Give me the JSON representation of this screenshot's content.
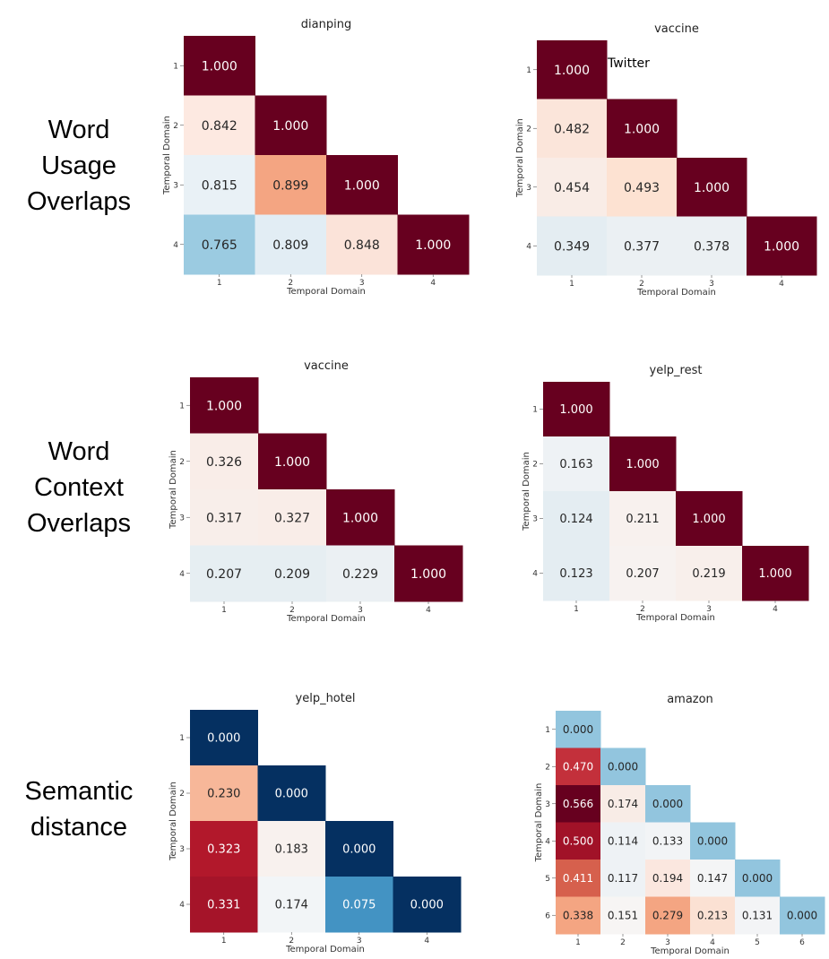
{
  "row_labels": [
    [
      "Word",
      "Usage",
      "Overlaps"
    ],
    [
      "Word",
      "Context",
      "Overlaps"
    ],
    [
      "Semantic",
      "distance"
    ]
  ],
  "annotation": "Twitter",
  "colors": {
    "dark_red": "#67001f",
    "dark_blue": "#053061",
    "diverging_scale": [
      "#053061",
      "#2166ac",
      "#4393c3",
      "#92c5de",
      "#d1e5f0",
      "#f7f7f7",
      "#fddbc7",
      "#f4a582",
      "#d6604d",
      "#b2182b",
      "#67001f"
    ]
  },
  "chart_data": [
    {
      "type": "heatmap",
      "title": "dianping",
      "xlabel": "Temporal Domain",
      "ylabel": "Temporal Domain",
      "ticks": [
        "1",
        "2",
        "3",
        "4"
      ],
      "matrix": [
        [
          1.0
        ],
        [
          0.842,
          1.0
        ],
        [
          0.815,
          0.899,
          1.0
        ],
        [
          0.765,
          0.809,
          0.848,
          1.0
        ]
      ],
      "labels": [
        [
          "1.000"
        ],
        [
          "0.842",
          "1.000"
        ],
        [
          "0.815",
          "0.899",
          "1.000"
        ],
        [
          "0.765",
          "0.809",
          "0.848",
          "1.000"
        ]
      ],
      "colors": [
        [
          "#67001f"
        ],
        [
          "#fde9e1",
          "#67001f"
        ],
        [
          "#e9f1f6",
          "#f4a582",
          "#67001f"
        ],
        [
          "#9bcbe1",
          "#e2edf4",
          "#fbe3d9",
          "#67001f"
        ]
      ]
    },
    {
      "type": "heatmap",
      "title": "vaccine",
      "xlabel": "Temporal Domain",
      "ylabel": "Temporal Domain",
      "ticks": [
        "1",
        "2",
        "3",
        "4"
      ],
      "matrix": [
        [
          1.0
        ],
        [
          0.482,
          1.0
        ],
        [
          0.454,
          0.493,
          1.0
        ],
        [
          0.349,
          0.377,
          0.378,
          1.0
        ]
      ],
      "labels": [
        [
          "1.000"
        ],
        [
          "0.482",
          "1.000"
        ],
        [
          "0.454",
          "0.493",
          "1.000"
        ],
        [
          "0.349",
          "0.377",
          "0.378",
          "1.000"
        ]
      ],
      "colors": [
        [
          "#67001f"
        ],
        [
          "#fbe5da",
          "#67001f"
        ],
        [
          "#f9ece6",
          "#fde2d2",
          "#67001f"
        ],
        [
          "#e4edf2",
          "#ebf0f3",
          "#ebf0f3",
          "#67001f"
        ]
      ]
    },
    {
      "type": "heatmap",
      "title": "vaccine",
      "xlabel": "Temporal Domain",
      "ylabel": "Temporal Domain",
      "ticks": [
        "1",
        "2",
        "3",
        "4"
      ],
      "matrix": [
        [
          1.0
        ],
        [
          0.326,
          1.0
        ],
        [
          0.317,
          0.327,
          1.0
        ],
        [
          0.207,
          0.209,
          0.229,
          1.0
        ]
      ],
      "labels": [
        [
          "1.000"
        ],
        [
          "0.326",
          "1.000"
        ],
        [
          "0.317",
          "0.327",
          "1.000"
        ],
        [
          "0.207",
          "0.209",
          "0.229",
          "1.000"
        ]
      ],
      "colors": [
        [
          "#67001f"
        ],
        [
          "#f9ede8",
          "#67001f"
        ],
        [
          "#f8eeea",
          "#f9ede8",
          "#67001f"
        ],
        [
          "#e6eef2",
          "#e6eef2",
          "#ebf0f3",
          "#67001f"
        ]
      ]
    },
    {
      "type": "heatmap",
      "title": "yelp_rest",
      "xlabel": "Temporal Domain",
      "ylabel": "Temporal Domain",
      "ticks": [
        "1",
        "2",
        "3",
        "4"
      ],
      "matrix": [
        [
          1.0
        ],
        [
          0.163,
          1.0
        ],
        [
          0.124,
          0.211,
          1.0
        ],
        [
          0.123,
          0.207,
          0.219,
          1.0
        ]
      ],
      "labels": [
        [
          "1.000"
        ],
        [
          "0.163",
          "1.000"
        ],
        [
          "0.124",
          "0.211",
          "1.000"
        ],
        [
          "0.123",
          "0.207",
          "0.219",
          "1.000"
        ]
      ],
      "colors": [
        [
          "#67001f"
        ],
        [
          "#eef2f5",
          "#67001f"
        ],
        [
          "#e4edf2",
          "#f8f1ee",
          "#67001f"
        ],
        [
          "#e4edf2",
          "#f7f2f0",
          "#f8efeb",
          "#67001f"
        ]
      ]
    },
    {
      "type": "heatmap",
      "title": "yelp_hotel",
      "xlabel": "Temporal Domain",
      "ylabel": "Temporal Domain",
      "ticks": [
        "1",
        "2",
        "3",
        "4"
      ],
      "matrix": [
        [
          0.0
        ],
        [
          0.23,
          0.0
        ],
        [
          0.323,
          0.183,
          0.0
        ],
        [
          0.331,
          0.174,
          0.075,
          0.0
        ]
      ],
      "labels": [
        [
          "0.000"
        ],
        [
          "0.230",
          "0.000"
        ],
        [
          "0.323",
          "0.183",
          "0.000"
        ],
        [
          "0.331",
          "0.174",
          "0.075",
          "0.000"
        ]
      ],
      "colors": [
        [
          "#053061"
        ],
        [
          "#f7b799",
          "#053061"
        ],
        [
          "#b2182b",
          "#f8f1ee",
          "#053061"
        ],
        [
          "#a51429",
          "#f2f5f7",
          "#4393c3",
          "#053061"
        ]
      ]
    },
    {
      "type": "heatmap",
      "title": "amazon",
      "xlabel": "Temporal Domain",
      "ylabel": "Temporal Domain",
      "ticks": [
        "1",
        "2",
        "3",
        "4",
        "5",
        "6"
      ],
      "matrix": [
        [
          0.0
        ],
        [
          0.47,
          0.0
        ],
        [
          0.566,
          0.174,
          0.0
        ],
        [
          0.5,
          0.114,
          0.133,
          0.0
        ],
        [
          0.411,
          0.117,
          0.194,
          0.147,
          0.0
        ],
        [
          0.338,
          0.151,
          0.279,
          0.213,
          0.131,
          0.0
        ]
      ],
      "labels": [
        [
          "0.000"
        ],
        [
          "0.470",
          "0.000"
        ],
        [
          "0.566",
          "0.174",
          "0.000"
        ],
        [
          "0.500",
          "0.114",
          "0.133",
          "0.000"
        ],
        [
          "0.411",
          "0.117",
          "0.194",
          "0.147",
          "0.000"
        ],
        [
          "0.338",
          "0.151",
          "0.279",
          "0.213",
          "0.131",
          "0.000"
        ]
      ],
      "colors": [
        [
          "#92c5de"
        ],
        [
          "#c3303b",
          "#92c5de"
        ],
        [
          "#67001f",
          "#f8ece6",
          "#92c5de"
        ],
        [
          "#a11228",
          "#eef2f5",
          "#f2f4f6",
          "#92c5de"
        ],
        [
          "#d6604d",
          "#eef2f5",
          "#fbe7df",
          "#f4f5f6",
          "#92c5de"
        ],
        [
          "#f4a582",
          "#f7f5f4",
          "#f4a582",
          "#fbe1d3",
          "#f3f4f6",
          "#92c5de"
        ]
      ]
    }
  ]
}
